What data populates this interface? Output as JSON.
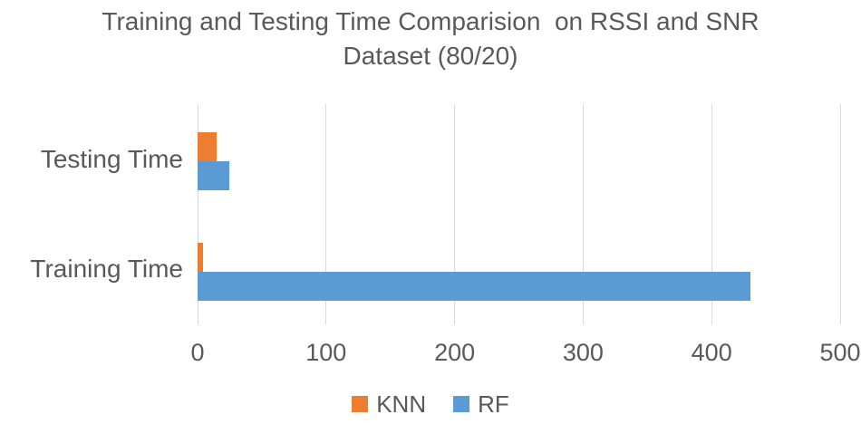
{
  "title": {
    "line1": "Training and Testing Time Comparision  on RSSI and SNR",
    "line2": "Dataset (80/20)"
  },
  "chart_data": {
    "type": "bar",
    "orientation": "horizontal",
    "title": "Training and Testing Time Comparision  on RSSI and SNR Dataset (80/20)",
    "categories": [
      "Testing Time",
      "Training Time"
    ],
    "series": [
      {
        "name": "KNN",
        "color": "#ED7D31",
        "values": [
          15,
          4
        ]
      },
      {
        "name": "RF",
        "color": "#5B9BD5",
        "values": [
          25,
          430
        ]
      }
    ],
    "xlabel": "",
    "ylabel": "",
    "xlim": [
      0,
      500
    ],
    "xticks": [
      0,
      100,
      200,
      300,
      400,
      500
    ],
    "grid": true,
    "legend_position": "bottom",
    "text_color": "#595959",
    "gridline_color": "#D9D9D9",
    "background_color": "#FFFFFF"
  }
}
